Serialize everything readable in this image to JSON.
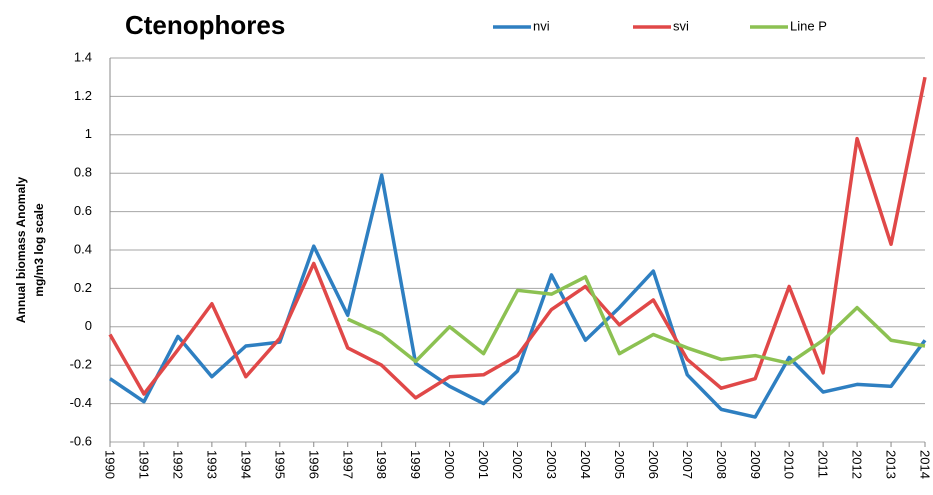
{
  "chart_data": {
    "type": "line",
    "title": "Ctenophores",
    "y_label": [
      "Annual biomass  Anomaly",
      "mg/m3 log scale"
    ],
    "categories": [
      "1990",
      "1991",
      "1992",
      "1993",
      "1994",
      "1995",
      "1996",
      "1997",
      "1998",
      "1999",
      "2000",
      "2001",
      "2002",
      "2003",
      "2004",
      "2005",
      "2006",
      "2007",
      "2008",
      "2009",
      "2010",
      "2011",
      "2012",
      "2013",
      "2014"
    ],
    "series": [
      {
        "name": "nvi",
        "color": "#2e7fc1",
        "values": [
          -0.27,
          -0.39,
          -0.05,
          -0.26,
          -0.1,
          -0.08,
          0.42,
          0.06,
          0.79,
          -0.19,
          -0.31,
          -0.4,
          -0.23,
          0.27,
          -0.07,
          0.1,
          0.29,
          -0.25,
          -0.43,
          -0.47,
          -0.16,
          -0.34,
          -0.3,
          -0.31,
          -0.07
        ]
      },
      {
        "name": "svi",
        "color": "#e04848",
        "values": [
          -0.04,
          -0.35,
          -0.12,
          0.12,
          -0.26,
          -0.06,
          0.33,
          -0.11,
          -0.2,
          -0.37,
          -0.26,
          -0.25,
          -0.15,
          0.09,
          0.21,
          0.01,
          0.14,
          -0.17,
          -0.32,
          -0.27,
          0.21,
          -0.24,
          0.98,
          0.43,
          1.3
        ]
      },
      {
        "name": "Line P",
        "color": "#8cc152",
        "values": [
          null,
          null,
          null,
          null,
          null,
          null,
          null,
          0.04,
          -0.04,
          -0.18,
          0.0,
          -0.14,
          0.19,
          0.17,
          0.26,
          -0.14,
          -0.04,
          -0.11,
          -0.17,
          -0.15,
          -0.19,
          -0.07,
          0.1,
          -0.07,
          -0.1
        ]
      }
    ],
    "ylim": [
      -0.6,
      1.4
    ],
    "yticks": [
      -0.6,
      -0.4,
      -0.2,
      0,
      0.2,
      0.4,
      0.6,
      0.8,
      1,
      1.2,
      1.4
    ],
    "grid": true,
    "legend": "top"
  }
}
